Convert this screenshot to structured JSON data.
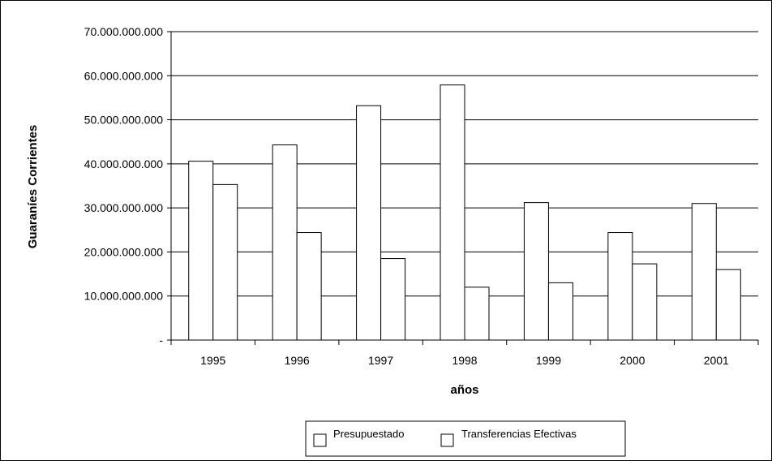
{
  "chart_data": {
    "type": "bar",
    "title": "",
    "xlabel": "años",
    "ylabel": "Guaraníes Corrientes",
    "categories": [
      "1995",
      "1996",
      "1997",
      "1998",
      "1999",
      "2000",
      "2001"
    ],
    "series": [
      {
        "name": "Presupuestado",
        "values": [
          40600000000,
          44300000000,
          53200000000,
          57900000000,
          31200000000,
          24400000000,
          31000000000
        ]
      },
      {
        "name": "Transferencias Efectivas",
        "values": [
          35300000000,
          24400000000,
          18500000000,
          12000000000,
          13000000000,
          17300000000,
          16000000000
        ]
      }
    ],
    "ylim": [
      0,
      70000000000
    ],
    "yticks": [
      0,
      10000000000,
      20000000000,
      30000000000,
      40000000000,
      50000000000,
      60000000000,
      70000000000
    ],
    "ytick_labels": [
      "-",
      "10.000.000.000",
      "20.000.000.000",
      "30.000.000.000",
      "40.000.000.000",
      "50.000.000.000",
      "60.000.000.000",
      "70.000.000.000"
    ],
    "grid": true,
    "legend": "bottom",
    "colors": {
      "bar_fill": "#ffffff",
      "bar_stroke": "#000000",
      "grid": "#000000"
    }
  }
}
